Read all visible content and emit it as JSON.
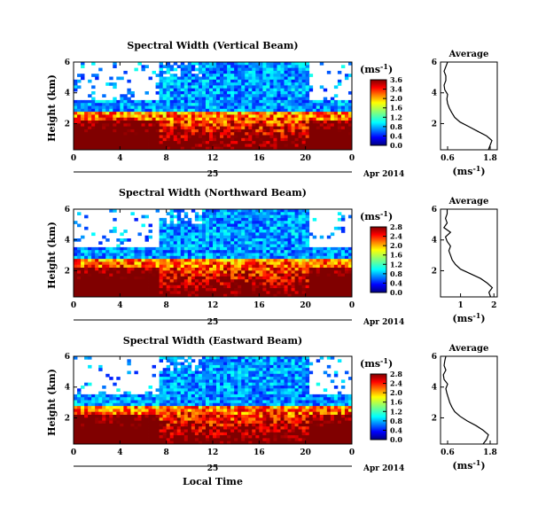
{
  "figure": {
    "footer_label": "Local Time",
    "day_label": "25",
    "month_label": "Apr 2014",
    "cbar_unit": "(ms",
    "cbar_exp": "-1",
    "cbar_unit_close": ")"
  },
  "chart_data": [
    {
      "type": "heatmap",
      "title": "Spectral Width (Vertical Beam)",
      "ylabel": "Height (km)",
      "x_ticks": [
        "0",
        "4",
        "8",
        "12",
        "16",
        "20",
        "0"
      ],
      "y_ticks": [
        "6",
        "4",
        "2"
      ],
      "xlim": [
        0,
        24
      ],
      "ylim": [
        0.3,
        6
      ],
      "colorbar": {
        "ticks": [
          "3.6",
          "3.4",
          "2.0",
          "1.6",
          "1.2",
          "0.8",
          "0.4",
          "0.0"
        ],
        "range": [
          0,
          3.6
        ]
      },
      "profile": {
        "title": "Average",
        "xlabel": "(ms",
        "x_ticks": [
          "0.6",
          "1.8"
        ],
        "y_ticks": [
          "6",
          "4",
          "2"
        ],
        "xlim": [
          0.4,
          2.0
        ],
        "ylim": [
          0.3,
          6
        ],
        "heights": [
          0.3,
          0.6,
          0.9,
          1.2,
          1.5,
          1.8,
          2.1,
          2.4,
          2.7,
          3.0,
          3.3,
          3.6,
          3.9,
          4.2,
          4.5,
          4.8,
          5.1,
          5.4,
          5.7,
          6.0
        ],
        "values": [
          1.75,
          1.8,
          1.85,
          1.7,
          1.45,
          1.2,
          0.95,
          0.8,
          0.72,
          0.65,
          0.6,
          0.58,
          0.6,
          0.52,
          0.5,
          0.55,
          0.55,
          0.5,
          0.55,
          0.6
        ]
      }
    },
    {
      "type": "heatmap",
      "title": "Spectral Width (Northward Beam)",
      "ylabel": "Height (km)",
      "x_ticks": [
        "0",
        "4",
        "8",
        "12",
        "16",
        "20",
        "0"
      ],
      "y_ticks": [
        "6",
        "4",
        "2"
      ],
      "xlim": [
        0,
        24
      ],
      "ylim": [
        0.3,
        6
      ],
      "colorbar": {
        "ticks": [
          "2.8",
          "2.4",
          "2.0",
          "1.6",
          "1.2",
          "0.8",
          "0.4",
          "0.0"
        ],
        "range": [
          0,
          2.8
        ]
      },
      "profile": {
        "title": "Average",
        "xlabel": "(ms",
        "x_ticks": [
          "1",
          "2"
        ],
        "y_ticks": [
          "6",
          "4",
          "2"
        ],
        "xlim": [
          0.4,
          2.1
        ],
        "ylim": [
          0.3,
          6
        ],
        "heights": [
          0.3,
          0.6,
          0.9,
          1.2,
          1.5,
          1.8,
          2.1,
          2.4,
          2.7,
          3.0,
          3.3,
          3.6,
          3.9,
          4.2,
          4.5,
          4.8,
          5.1,
          5.4,
          5.7,
          6.0
        ],
        "values": [
          1.9,
          1.85,
          1.95,
          1.8,
          1.6,
          1.3,
          1.0,
          0.85,
          0.75,
          0.7,
          0.65,
          0.7,
          0.6,
          0.55,
          0.7,
          0.5,
          0.6,
          0.55,
          0.6,
          0.6
        ]
      }
    },
    {
      "type": "heatmap",
      "title": "Spectral Width (Eastward Beam)",
      "ylabel": "Height (km)",
      "x_ticks": [
        "0",
        "4",
        "8",
        "12",
        "16",
        "20",
        "0"
      ],
      "y_ticks": [
        "6",
        "4",
        "2"
      ],
      "xlim": [
        0,
        24
      ],
      "ylim": [
        0.3,
        6
      ],
      "colorbar": {
        "ticks": [
          "2.8",
          "2.4",
          "2.0",
          "1.6",
          "1.2",
          "0.8",
          "0.4",
          "0.0"
        ],
        "range": [
          0,
          2.8
        ]
      },
      "profile": {
        "title": "Average",
        "xlabel": "(ms",
        "x_ticks": [
          "0.6",
          "1.8"
        ],
        "y_ticks": [
          "6",
          "4",
          "2"
        ],
        "xlim": [
          0.4,
          2.0
        ],
        "ylim": [
          0.3,
          6
        ],
        "heights": [
          0.3,
          0.6,
          0.9,
          1.2,
          1.5,
          1.8,
          2.1,
          2.4,
          2.7,
          3.0,
          3.3,
          3.6,
          3.9,
          4.2,
          4.5,
          4.8,
          5.1,
          5.4,
          5.7,
          6.0
        ],
        "values": [
          1.6,
          1.7,
          1.75,
          1.6,
          1.4,
          1.15,
          0.95,
          0.8,
          0.72,
          0.66,
          0.62,
          0.58,
          0.55,
          0.6,
          0.5,
          0.48,
          0.55,
          0.5,
          0.52,
          0.55
        ]
      }
    }
  ]
}
